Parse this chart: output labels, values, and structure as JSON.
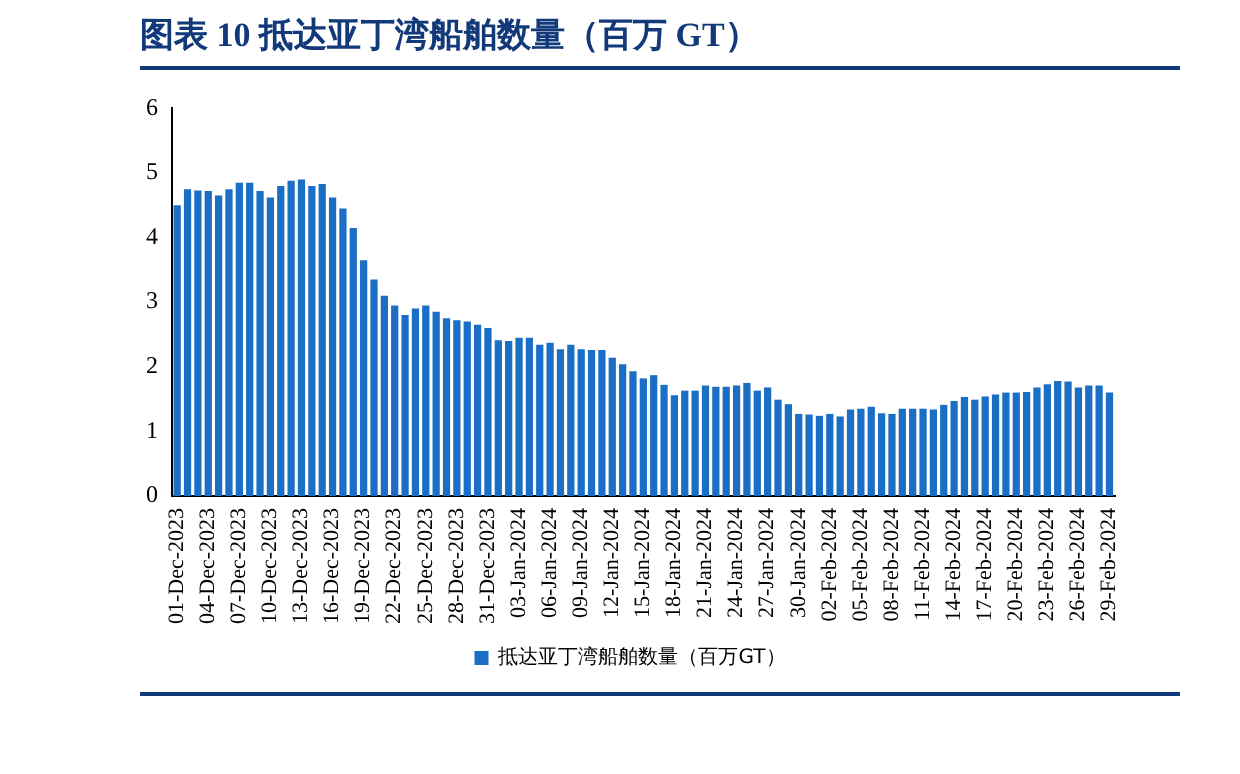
{
  "chart_data": {
    "type": "bar",
    "title": "图表 10  抵达亚丁湾船舶数量（百万 GT）",
    "categories": [
      "01-Dec-2023",
      null,
      null,
      "04-Dec-2023",
      null,
      null,
      "07-Dec-2023",
      null,
      null,
      "10-Dec-2023",
      null,
      null,
      "13-Dec-2023",
      null,
      null,
      "16-Dec-2023",
      null,
      null,
      "19-Dec-2023",
      null,
      null,
      "22-Dec-2023",
      null,
      null,
      "25-Dec-2023",
      null,
      null,
      "28-Dec-2023",
      null,
      null,
      "31-Dec-2023",
      null,
      null,
      "03-Jan-2024",
      null,
      null,
      "06-Jan-2024",
      null,
      null,
      "09-Jan-2024",
      null,
      null,
      "12-Jan-2024",
      null,
      null,
      "15-Jan-2024",
      null,
      null,
      "18-Jan-2024",
      null,
      null,
      "21-Jan-2024",
      null,
      null,
      "24-Jan-2024",
      null,
      null,
      "27-Jan-2024",
      null,
      null,
      "30-Jan-2024",
      null,
      null,
      "02-Feb-2024",
      null,
      null,
      "05-Feb-2024",
      null,
      null,
      "08-Feb-2024",
      null,
      null,
      "11-Feb-2024",
      null,
      null,
      "14-Feb-2024",
      null,
      null,
      "17-Feb-2024",
      null,
      null,
      "20-Feb-2024",
      null,
      null,
      "23-Feb-2024",
      null,
      null,
      "26-Feb-2024",
      null,
      null,
      "29-Feb-2024"
    ],
    "series": [
      {
        "name": "抵达亚丁湾船舶数量（百万GT）",
        "color": "#1a6ec4",
        "values": [
          4.5,
          4.75,
          4.73,
          4.72,
          4.65,
          4.75,
          4.85,
          4.85,
          4.72,
          4.62,
          4.8,
          4.88,
          4.9,
          4.8,
          4.83,
          4.62,
          4.45,
          4.15,
          3.65,
          3.35,
          3.1,
          2.95,
          2.8,
          2.9,
          2.95,
          2.85,
          2.75,
          2.72,
          2.7,
          2.65,
          2.6,
          2.41,
          2.4,
          2.45,
          2.45,
          2.34,
          2.37,
          2.27,
          2.34,
          2.27,
          2.26,
          2.26,
          2.14,
          2.04,
          1.93,
          1.82,
          1.87,
          1.72,
          1.56,
          1.63,
          1.63,
          1.71,
          1.69,
          1.69,
          1.71,
          1.75,
          1.63,
          1.68,
          1.49,
          1.42,
          1.27,
          1.26,
          1.24,
          1.27,
          1.23,
          1.34,
          1.35,
          1.38,
          1.28,
          1.27,
          1.35,
          1.35,
          1.35,
          1.34,
          1.41,
          1.47,
          1.53,
          1.49,
          1.54,
          1.57,
          1.6,
          1.6,
          1.61,
          1.68,
          1.73,
          1.78,
          1.77,
          1.68,
          1.71,
          1.71,
          1.6
        ]
      }
    ],
    "ylim": [
      0,
      6
    ],
    "yticks": [
      0,
      1,
      2,
      3,
      4,
      5,
      6
    ],
    "grid": false,
    "legend": "bottom"
  }
}
